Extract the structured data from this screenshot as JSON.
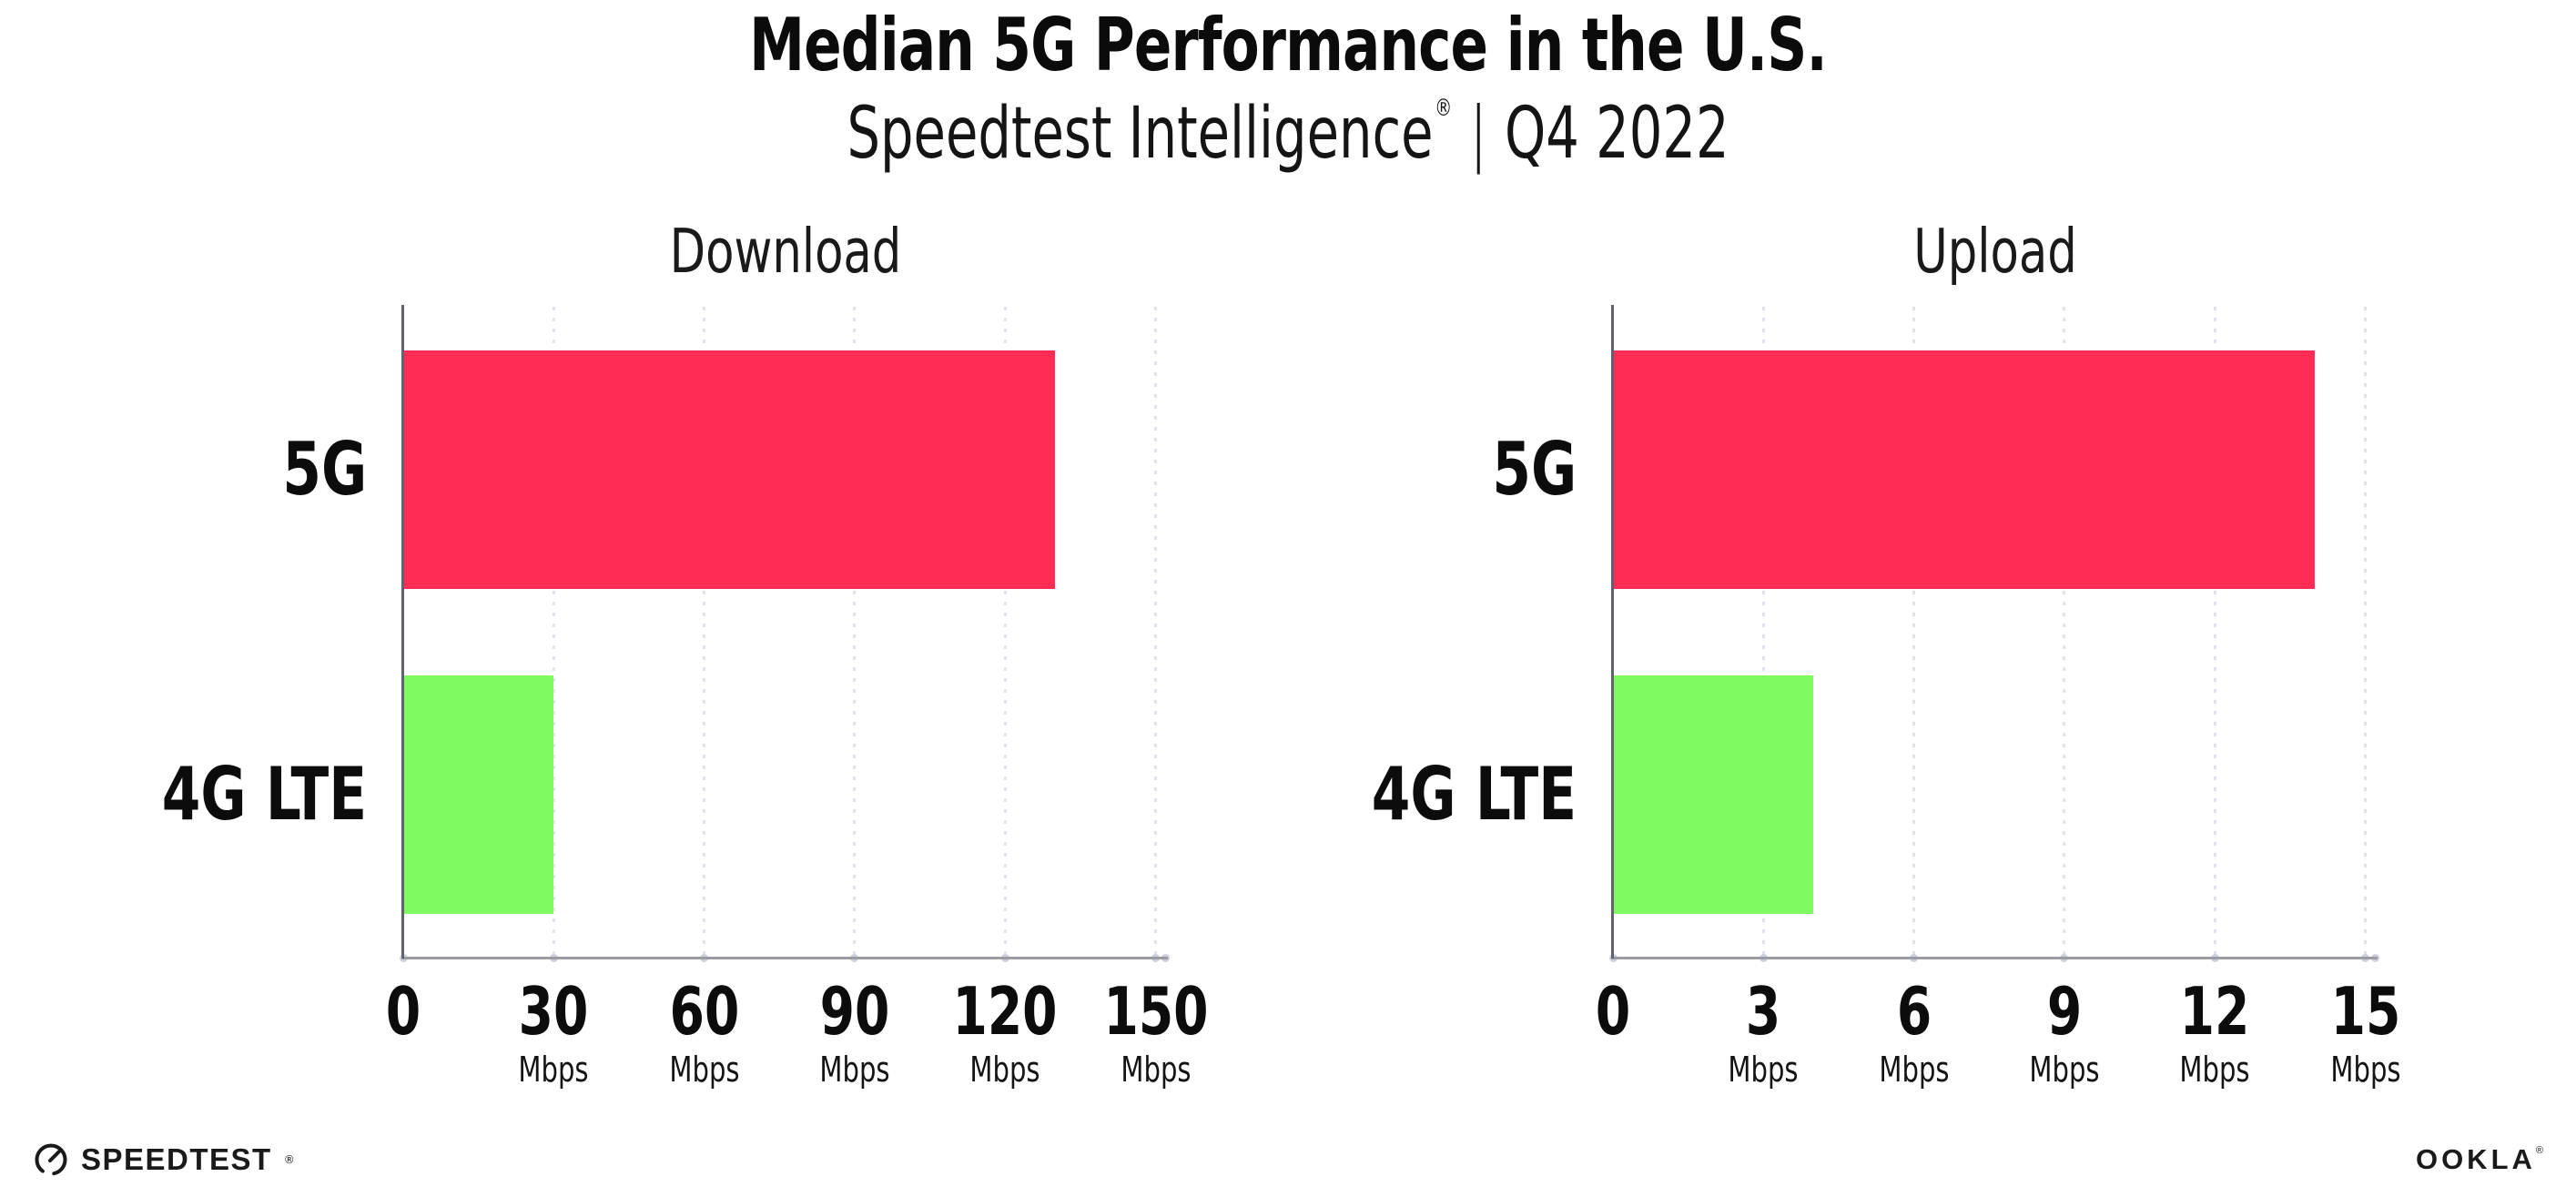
{
  "header": {
    "title": "Median 5G Performance in the U.S.",
    "subtitle": {
      "brand": "Speedtest Intelligence",
      "registered_mark": "®",
      "separator": "|",
      "period": "Q4 2022"
    }
  },
  "chart_data": [
    {
      "type": "bar",
      "orientation": "horizontal",
      "title": "Download",
      "categories": [
        "5G",
        "4G LTE"
      ],
      "values": [
        130,
        30
      ],
      "unit": "Mbps",
      "xlim": [
        0,
        150
      ],
      "xticks": [
        0,
        30,
        60,
        90,
        120,
        150
      ],
      "gridlines": "dotted-vertical",
      "legend": "none",
      "bar_colors": [
        "#ff2d55",
        "#80fa61"
      ]
    },
    {
      "type": "bar",
      "orientation": "horizontal",
      "title": "Upload",
      "categories": [
        "5G",
        "4G LTE"
      ],
      "values": [
        14,
        4
      ],
      "unit": "Mbps",
      "xlim": [
        0,
        15
      ],
      "xticks": [
        0,
        3,
        6,
        9,
        12,
        15
      ],
      "gridlines": "dotted-vertical",
      "legend": "none",
      "bar_colors": [
        "#ff2d55",
        "#80fa61"
      ]
    }
  ],
  "footer": {
    "speedtest_label": "SPEEDTEST",
    "speedtest_mark": "®",
    "ookla_label": "OOKLA",
    "ookla_mark": "®"
  },
  "colors": {
    "bar_5g": "#ff2d55",
    "bar_4g_lte": "#80fa61",
    "gridline": "#e2e2ee",
    "x_axis": "#9b9ba4",
    "y_axis": "#62626e",
    "text": "#111111",
    "background": "#ffffff"
  }
}
